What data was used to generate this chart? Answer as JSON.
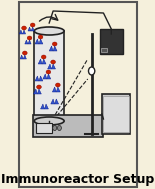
{
  "title": "Immunoreactor Setup",
  "bg_color": "#f5f0dc",
  "border_color": "#888888",
  "text_color": "#000000",
  "title_fontsize": 9,
  "blue_color": "#3355cc",
  "red_color": "#cc2200",
  "dark_color": "#222222",
  "gray_color": "#aaaaaa",
  "light_gray": "#cccccc",
  "equipment_gray": "#bbbbbb"
}
